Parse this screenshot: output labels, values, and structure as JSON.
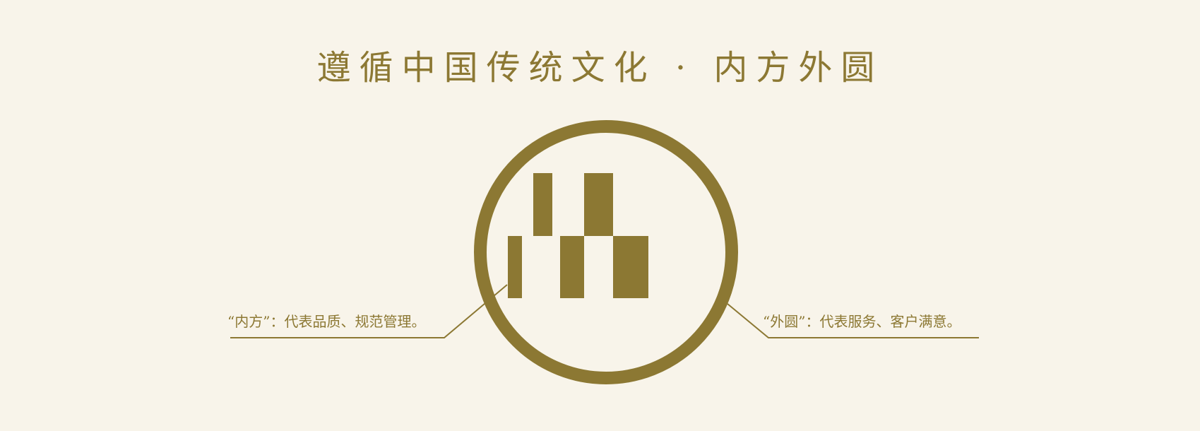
{
  "colors": {
    "background": "#f8f4ea",
    "accent": "#8c7833"
  },
  "title": "遵循中国传统文化 · 内方外圆",
  "left_caption": "“内方”：代表品质、规范管理。",
  "right_caption": "“外圆”：代表服务、客户满意。",
  "emblem_icon": "circle-with-square-blocks-logo"
}
